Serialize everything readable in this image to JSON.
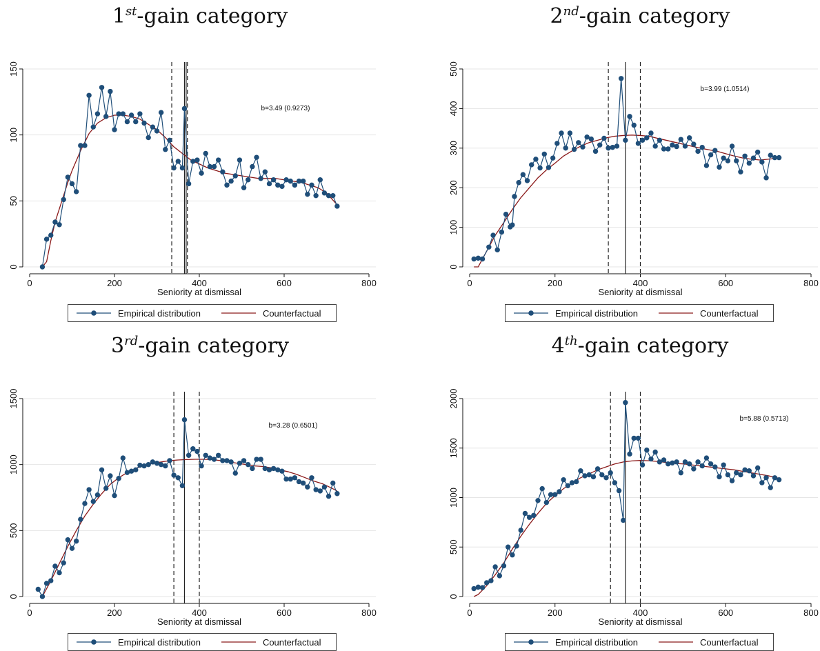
{
  "panels": [
    {
      "title_ordinal": "1",
      "title_suffix": "st",
      "title_rest": "-gain category",
      "annotation": "b=3.49 (0.9273)",
      "xlabel": "Seniority at dismissal",
      "legend": [
        "Empirical distribution",
        "Counterfactual"
      ]
    },
    {
      "title_ordinal": "2",
      "title_suffix": "nd",
      "title_rest": "-gain category",
      "annotation": "b=3.99 (1.0514)",
      "xlabel": "Seniority at dismissal",
      "legend": [
        "Empirical distribution",
        "Counterfactual"
      ]
    },
    {
      "title_ordinal": "3",
      "title_suffix": "rd",
      "title_rest": "-gain category",
      "annotation": "b=3.28 (0.6501)",
      "xlabel": "Seniority at dismissal",
      "legend": [
        "Empirical distribution",
        "Counterfactual"
      ]
    },
    {
      "title_ordinal": "4",
      "title_suffix": "th",
      "title_rest": "-gain category",
      "annotation": "b=5.88 (0.5713)",
      "xlabel": "Seniority at dismissal",
      "legend": [
        "Empirical distribution",
        "Counterfactual"
      ]
    }
  ],
  "colors": {
    "empirical": "#1f4e79",
    "counterfactual": "#8b1a1a",
    "grid": "#e6e6e6"
  },
  "chart_data": [
    {
      "type": "line",
      "title": "1st-gain category",
      "xlabel": "Seniority at dismissal",
      "ylabel": "",
      "xlim": [
        0,
        800
      ],
      "ylim": [
        0,
        150
      ],
      "xticks": [
        0,
        200,
        400,
        600,
        800
      ],
      "yticks": [
        0,
        50,
        100,
        150
      ],
      "grid": true,
      "legend_placement": "bottom",
      "vlines": {
        "solid": [
          365,
          369
        ],
        "dashed": [
          335,
          372
        ]
      },
      "series": [
        {
          "name": "Empirical distribution",
          "x": [
            30,
            40,
            50,
            60,
            70,
            80,
            90,
            100,
            110,
            120,
            130,
            140,
            150,
            160,
            170,
            180,
            190,
            200,
            210,
            220,
            230,
            240,
            250,
            260,
            270,
            280,
            290,
            300,
            310,
            320,
            330,
            340,
            350,
            360,
            365,
            375,
            385,
            395,
            405,
            415,
            425,
            435,
            445,
            455,
            465,
            475,
            485,
            495,
            505,
            515,
            525,
            535,
            545,
            555,
            565,
            575,
            585,
            595,
            605,
            615,
            625,
            635,
            645,
            655,
            665,
            675,
            685,
            695,
            705,
            715,
            725
          ],
          "y": [
            0,
            21,
            24,
            34,
            32,
            51,
            68,
            63,
            57,
            92,
            92,
            130,
            106,
            116,
            136,
            114,
            133,
            104,
            116,
            116,
            110,
            115,
            110,
            116,
            109,
            98,
            106,
            103,
            117,
            89,
            96,
            75,
            80,
            75,
            120,
            63,
            80,
            81,
            71,
            86,
            76,
            76,
            81,
            72,
            62,
            65,
            69,
            81,
            60,
            66,
            76,
            83,
            67,
            72,
            63,
            66,
            62,
            61,
            66,
            65,
            62,
            65,
            65,
            55,
            62,
            54,
            66,
            56,
            54,
            54,
            46
          ]
        },
        {
          "name": "Counterfactual",
          "x": [
            30,
            40,
            50,
            60,
            70,
            80,
            90,
            100,
            120,
            140,
            160,
            180,
            200,
            220,
            240,
            260,
            280,
            300,
            320,
            340,
            360,
            380,
            400,
            420,
            440,
            460,
            480,
            500,
            520,
            540,
            560,
            580,
            600,
            620,
            640,
            660,
            680,
            700,
            725
          ],
          "y": [
            0,
            4,
            20,
            34,
            44,
            54,
            64,
            73,
            88,
            101,
            109,
            113,
            115,
            115,
            114,
            112,
            108,
            104,
            98,
            91,
            86,
            81,
            78,
            75,
            73,
            71,
            70,
            69,
            68,
            67,
            67,
            67,
            66,
            65,
            64,
            62,
            60,
            56,
            47
          ]
        }
      ]
    },
    {
      "type": "line",
      "title": "2nd-gain category",
      "xlabel": "Seniority at dismissal",
      "ylabel": "",
      "xlim": [
        0,
        800
      ],
      "ylim": [
        0,
        500
      ],
      "xticks": [
        0,
        200,
        400,
        600,
        800
      ],
      "yticks": [
        0,
        100,
        200,
        300,
        400,
        500
      ],
      "grid": true,
      "legend_placement": "bottom",
      "vlines": {
        "solid": [
          365
        ],
        "dashed": [
          325,
          400
        ]
      },
      "series": [
        {
          "name": "Empirical distribution",
          "x": [
            10,
            20,
            30,
            45,
            55,
            65,
            75,
            85,
            95,
            100,
            105,
            115,
            125,
            135,
            145,
            155,
            165,
            175,
            185,
            195,
            205,
            215,
            225,
            235,
            245,
            255,
            265,
            275,
            285,
            295,
            305,
            315,
            325,
            335,
            345,
            355,
            365,
            375,
            385,
            395,
            405,
            415,
            425,
            435,
            445,
            455,
            465,
            475,
            485,
            495,
            505,
            515,
            525,
            535,
            545,
            555,
            565,
            575,
            585,
            595,
            605,
            615,
            625,
            635,
            645,
            655,
            665,
            675,
            685,
            695,
            705,
            715,
            725
          ],
          "y": [
            20,
            22,
            20,
            50,
            80,
            43,
            88,
            133,
            101,
            106,
            178,
            213,
            233,
            218,
            258,
            272,
            250,
            285,
            251,
            275,
            312,
            338,
            300,
            338,
            297,
            314,
            303,
            328,
            323,
            292,
            308,
            325,
            300,
            302,
            305,
            476,
            320,
            380,
            358,
            312,
            320,
            326,
            338,
            305,
            320,
            298,
            298,
            308,
            304,
            322,
            305,
            326,
            310,
            292,
            302,
            256,
            283,
            294,
            252,
            275,
            268,
            305,
            268,
            240,
            280,
            262,
            275,
            290,
            265,
            225,
            282,
            276,
            276
          ]
        },
        {
          "name": "Counterfactual",
          "x": [
            10,
            20,
            40,
            60,
            80,
            100,
            120,
            140,
            160,
            180,
            200,
            220,
            240,
            260,
            280,
            300,
            320,
            340,
            360,
            380,
            400,
            420,
            440,
            460,
            480,
            500,
            520,
            540,
            560,
            580,
            600,
            620,
            640,
            660,
            680,
            700,
            725
          ],
          "y": [
            0,
            0,
            40,
            80,
            112,
            145,
            175,
            200,
            225,
            245,
            262,
            280,
            293,
            305,
            314,
            320,
            326,
            330,
            332,
            333,
            332,
            330,
            325,
            320,
            315,
            310,
            305,
            300,
            296,
            292,
            286,
            280,
            275,
            272,
            270,
            272,
            275
          ]
        }
      ]
    },
    {
      "type": "line",
      "title": "3rd-gain category",
      "xlabel": "Seniority at dismissal",
      "ylabel": "",
      "xlim": [
        0,
        800
      ],
      "ylim": [
        0,
        1500
      ],
      "xticks": [
        0,
        200,
        400,
        600,
        800
      ],
      "yticks": [
        0,
        500,
        1000,
        1500
      ],
      "grid": true,
      "legend_placement": "bottom",
      "vlines": {
        "solid": [
          365
        ],
        "dashed": [
          340,
          400
        ]
      },
      "series": [
        {
          "name": "Empirical distribution",
          "x": [
            20,
            30,
            40,
            50,
            60,
            70,
            80,
            90,
            100,
            110,
            120,
            130,
            140,
            150,
            160,
            170,
            180,
            190,
            200,
            210,
            220,
            230,
            240,
            250,
            260,
            270,
            280,
            290,
            300,
            310,
            320,
            330,
            340,
            350,
            360,
            365,
            375,
            385,
            395,
            405,
            415,
            425,
            435,
            445,
            455,
            465,
            475,
            485,
            495,
            505,
            515,
            525,
            535,
            545,
            555,
            565,
            575,
            585,
            595,
            605,
            615,
            625,
            635,
            645,
            655,
            665,
            675,
            685,
            695,
            705,
            715,
            725
          ],
          "y": [
            55,
            0,
            100,
            120,
            230,
            180,
            255,
            430,
            365,
            420,
            585,
            705,
            810,
            720,
            770,
            960,
            820,
            915,
            765,
            895,
            1050,
            940,
            950,
            960,
            995,
            990,
            1000,
            1020,
            1010,
            1000,
            990,
            1030,
            920,
            900,
            840,
            1340,
            1070,
            1120,
            1100,
            990,
            1070,
            1050,
            1040,
            1070,
            1030,
            1030,
            1020,
            935,
            1010,
            1030,
            1000,
            970,
            1040,
            1040,
            970,
            960,
            970,
            960,
            950,
            890,
            890,
            900,
            870,
            860,
            830,
            900,
            810,
            800,
            830,
            760,
            860,
            780
          ]
        },
        {
          "name": "Counterfactual",
          "x": [
            30,
            50,
            70,
            90,
            110,
            130,
            150,
            170,
            190,
            210,
            230,
            250,
            270,
            290,
            310,
            330,
            350,
            370,
            390,
            410,
            430,
            450,
            470,
            490,
            510,
            530,
            550,
            570,
            590,
            610,
            630,
            650,
            670,
            690,
            710,
            725
          ],
          "y": [
            0,
            120,
            250,
            380,
            500,
            610,
            700,
            780,
            850,
            900,
            940,
            970,
            995,
            1010,
            1020,
            1030,
            1035,
            1038,
            1040,
            1040,
            1038,
            1030,
            1020,
            1010,
            1000,
            990,
            985,
            975,
            960,
            945,
            925,
            900,
            875,
            855,
            825,
            800
          ]
        }
      ]
    },
    {
      "type": "line",
      "title": "4th-gain category",
      "xlabel": "Seniority at dismissal",
      "ylabel": "",
      "xlim": [
        0,
        800
      ],
      "ylim": [
        0,
        2000
      ],
      "xticks": [
        0,
        200,
        400,
        600,
        800
      ],
      "yticks": [
        0,
        500,
        1000,
        1500,
        2000
      ],
      "grid": true,
      "legend_placement": "bottom",
      "vlines": {
        "solid": [
          365
        ],
        "dashed": [
          330,
          400
        ]
      },
      "series": [
        {
          "name": "Empirical distribution",
          "x": [
            10,
            20,
            30,
            40,
            50,
            60,
            70,
            80,
            90,
            100,
            110,
            120,
            130,
            140,
            150,
            160,
            170,
            180,
            190,
            200,
            210,
            220,
            230,
            240,
            250,
            260,
            270,
            280,
            290,
            300,
            310,
            320,
            330,
            340,
            350,
            360,
            365,
            375,
            385,
            395,
            405,
            415,
            425,
            435,
            445,
            455,
            465,
            475,
            485,
            495,
            505,
            515,
            525,
            535,
            545,
            555,
            565,
            575,
            585,
            595,
            605,
            615,
            625,
            635,
            645,
            655,
            665,
            675,
            685,
            695,
            705,
            715,
            725
          ],
          "y": [
            80,
            95,
            90,
            140,
            160,
            300,
            210,
            310,
            500,
            420,
            510,
            670,
            840,
            800,
            820,
            970,
            1090,
            950,
            1030,
            1030,
            1060,
            1180,
            1120,
            1150,
            1160,
            1270,
            1220,
            1230,
            1210,
            1290,
            1230,
            1200,
            1250,
            1150,
            1070,
            770,
            1960,
            1440,
            1600,
            1600,
            1330,
            1480,
            1390,
            1460,
            1360,
            1380,
            1340,
            1350,
            1360,
            1250,
            1360,
            1340,
            1290,
            1360,
            1320,
            1400,
            1340,
            1310,
            1210,
            1330,
            1230,
            1170,
            1250,
            1230,
            1280,
            1270,
            1220,
            1300,
            1150,
            1200,
            1100,
            1200,
            1180
          ]
        },
        {
          "name": "Counterfactual",
          "x": [
            10,
            20,
            40,
            60,
            80,
            100,
            120,
            140,
            160,
            180,
            200,
            220,
            240,
            260,
            280,
            300,
            320,
            340,
            360,
            380,
            400,
            420,
            440,
            460,
            480,
            500,
            520,
            540,
            560,
            580,
            600,
            620,
            640,
            660,
            680,
            700,
            725
          ],
          "y": [
            0,
            20,
            110,
            220,
            340,
            480,
            610,
            730,
            840,
            940,
            1020,
            1090,
            1150,
            1200,
            1240,
            1280,
            1310,
            1340,
            1360,
            1370,
            1375,
            1372,
            1365,
            1355,
            1345,
            1340,
            1330,
            1320,
            1310,
            1300,
            1290,
            1280,
            1265,
            1250,
            1235,
            1220,
            1195
          ]
        }
      ]
    }
  ]
}
